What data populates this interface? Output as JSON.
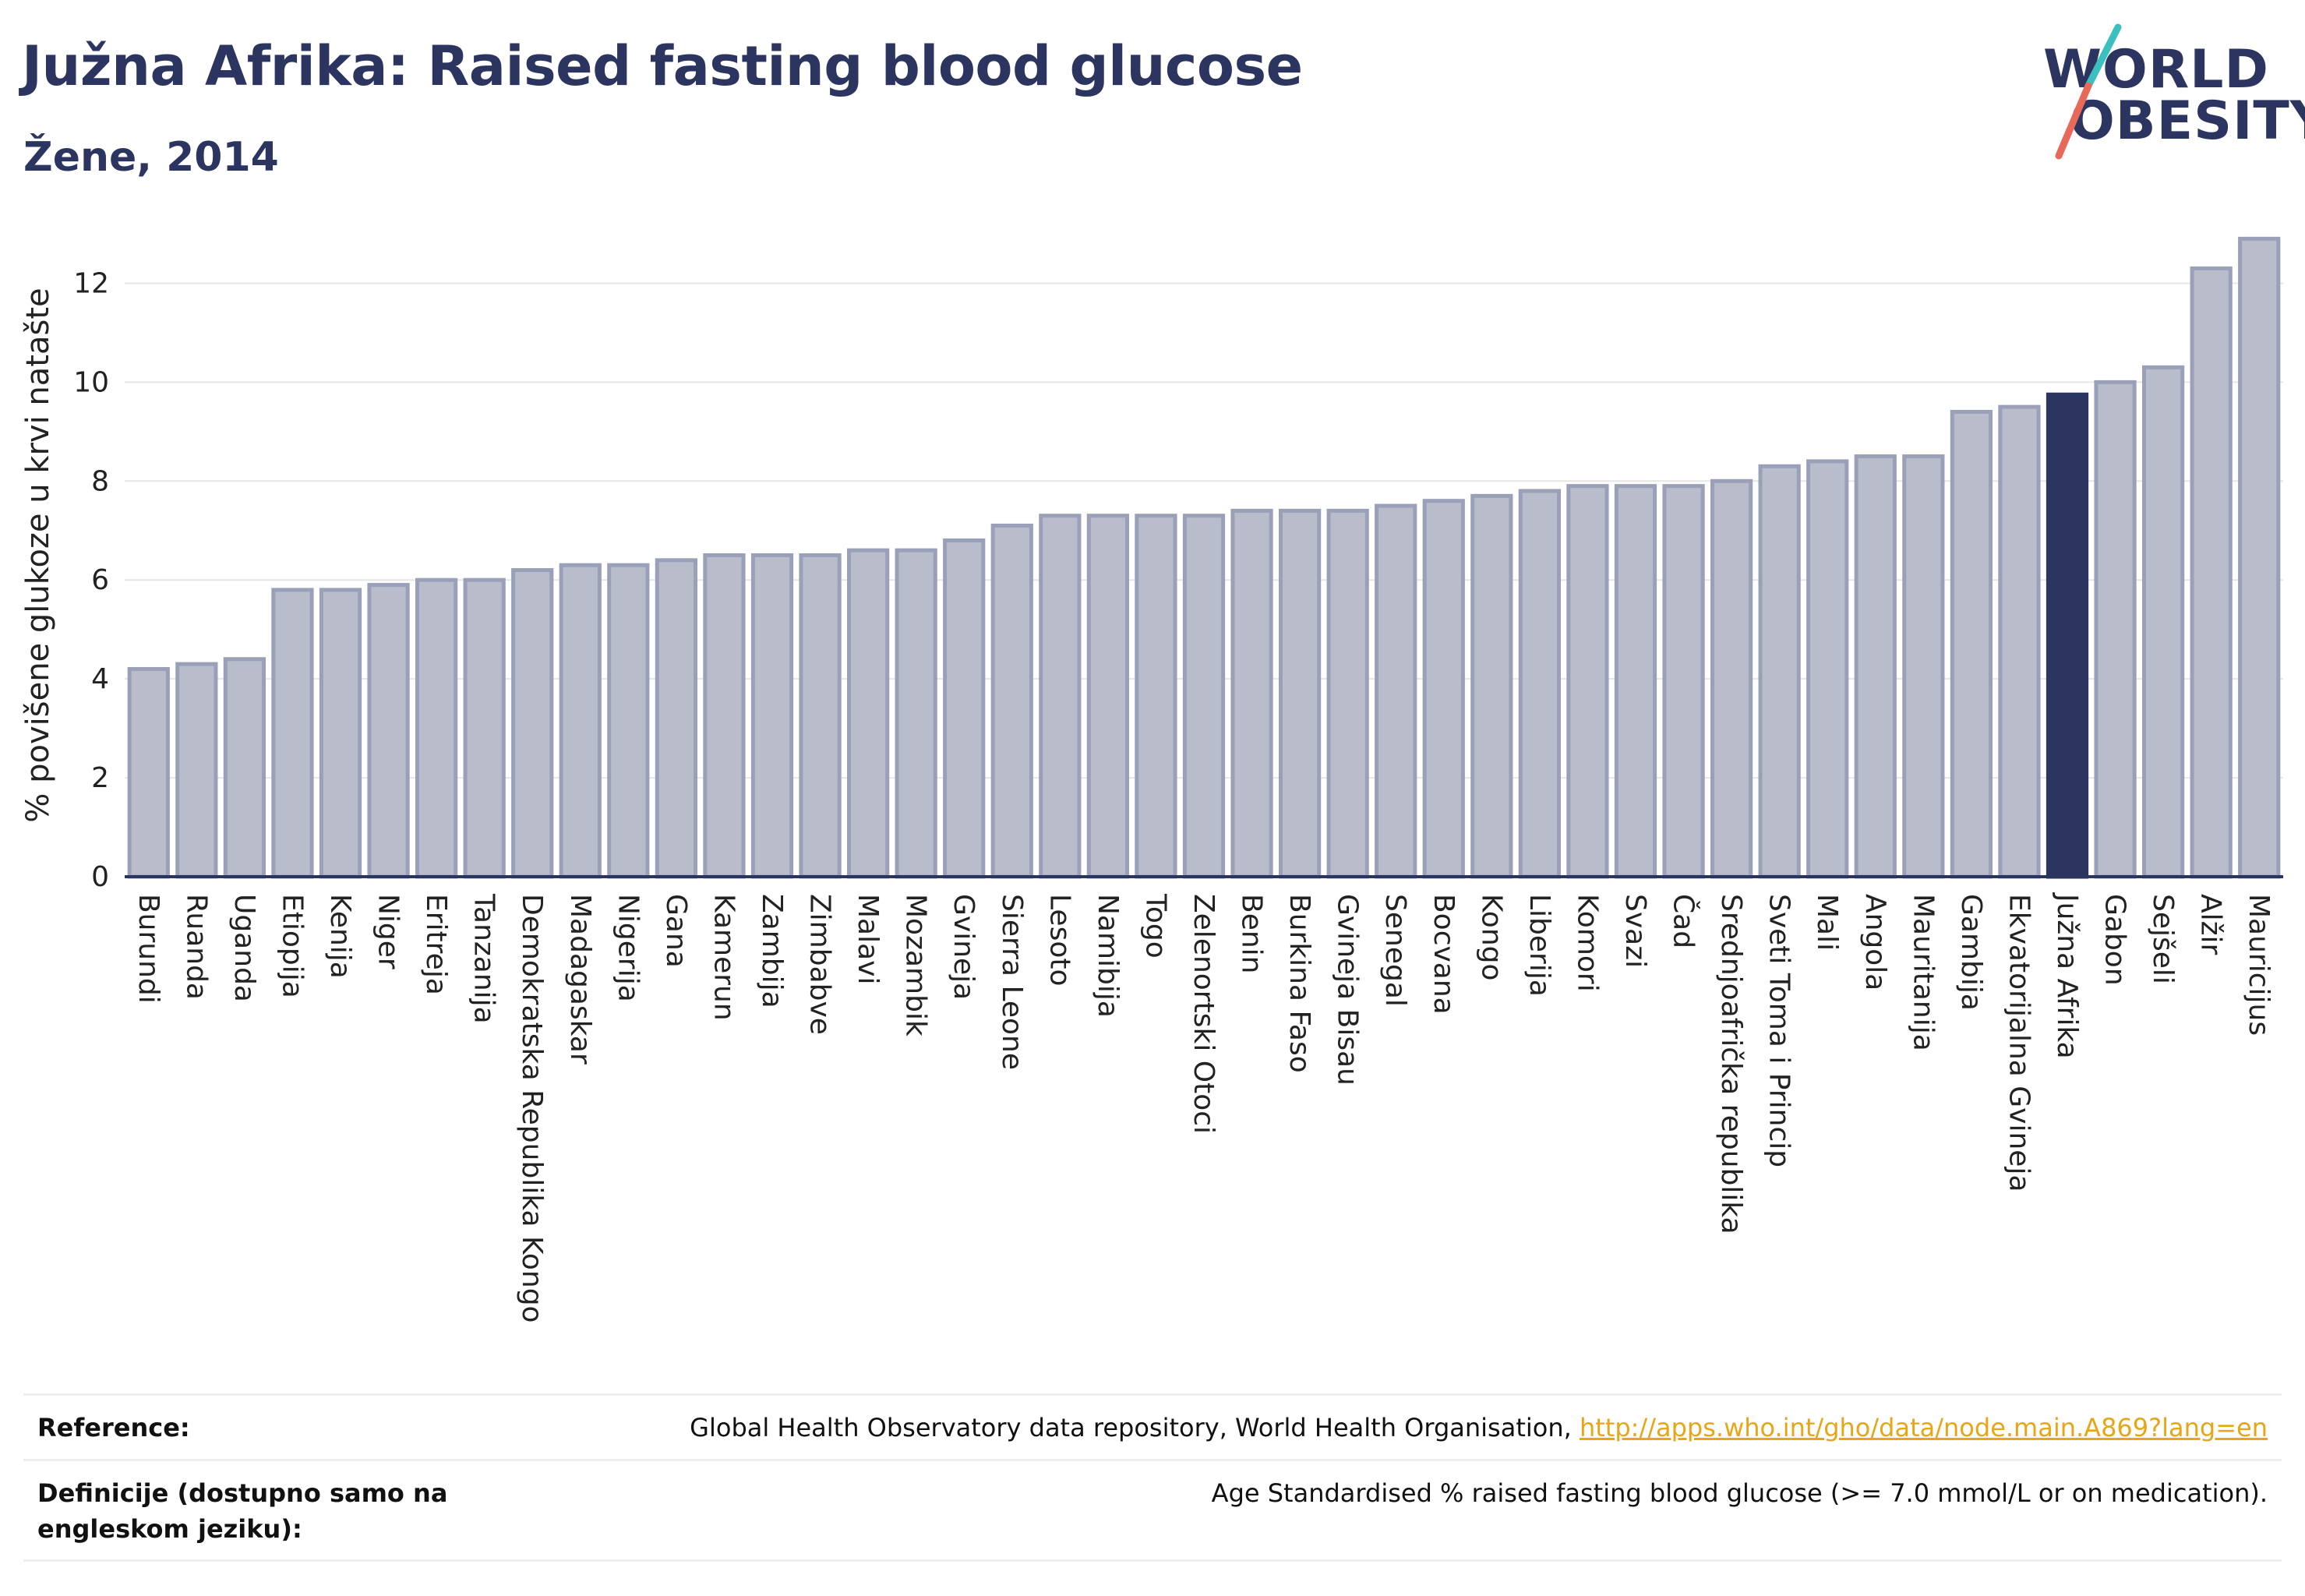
{
  "header": {
    "title": "Južna Afrika: Raised fasting blood glucose",
    "subtitle": "Žene, 2014"
  },
  "logo": {
    "line1": "WORLD",
    "line2": "OBESITY",
    "colors": {
      "text": "#2b3560",
      "slash_top": "#3bbfbf",
      "slash_bottom": "#e8685a"
    }
  },
  "colors": {
    "bar_fill": "#b9bdcb",
    "bar_stroke": "#9aa0b8",
    "highlight_fill": "#2b3560",
    "grid": "#e6e6e6",
    "axis": "#2b3560"
  },
  "chart_data": {
    "type": "bar",
    "title": "Južna Afrika: Raised fasting blood glucose",
    "subtitle": "Žene, 2014",
    "xlabel": "",
    "ylabel": "% povišene glukoze u krvi natašte",
    "ylim": [
      0,
      13
    ],
    "yticks": [
      0,
      2,
      4,
      6,
      8,
      10,
      12
    ],
    "grid": true,
    "highlight": "Južna Afrika",
    "categories": [
      "Burundi",
      "Ruanda",
      "Uganda",
      "Etiopija",
      "Kenija",
      "Niger",
      "Eritreja",
      "Tanzanija",
      "Demokratska Republika Kongo",
      "Madagaskar",
      "Nigerija",
      "Gana",
      "Kamerun",
      "Zambija",
      "Zimbabve",
      "Malavi",
      "Mozambik",
      "Gvineja",
      "Sierra Leone",
      "Lesoto",
      "Namibija",
      "Togo",
      "Zelenortski Otoci",
      "Benin",
      "Burkina Faso",
      "Gvineja Bisau",
      "Senegal",
      "Bocvana",
      "Kongo",
      "Liberija",
      "Komori",
      "Svazi",
      "Čad",
      "Srednjoafrička republika",
      "Sveti Toma i Princip",
      "Mali",
      "Angola",
      "Mauritanija",
      "Gambija",
      "Ekvatorijalna Gvineja",
      "Južna Afrika",
      "Gabon",
      "Sejšeli",
      "Alžir",
      "Mauricijus"
    ],
    "values": [
      4.2,
      4.3,
      4.4,
      5.8,
      5.8,
      5.9,
      6.0,
      6.0,
      6.2,
      6.3,
      6.3,
      6.4,
      6.5,
      6.5,
      6.5,
      6.6,
      6.6,
      6.8,
      7.1,
      7.3,
      7.3,
      7.3,
      7.3,
      7.4,
      7.4,
      7.4,
      7.5,
      7.6,
      7.7,
      7.8,
      7.9,
      7.9,
      7.9,
      8.0,
      8.3,
      8.4,
      8.5,
      8.5,
      9.4,
      9.5,
      9.75,
      10.0,
      10.3,
      12.3,
      12.9
    ]
  },
  "footer": {
    "reference_label": "Reference:",
    "reference_text": "Global Health Observatory data repository, World Health Organisation, ",
    "reference_link": "http://apps.who.int/gho/data/node.main.A869?lang=en",
    "definition_label": "Definicije (dostupno samo na engleskom jeziku):",
    "definition_text": "Age Standardised % raised fasting blood glucose (>= 7.0 mmol/L or on medication)."
  }
}
